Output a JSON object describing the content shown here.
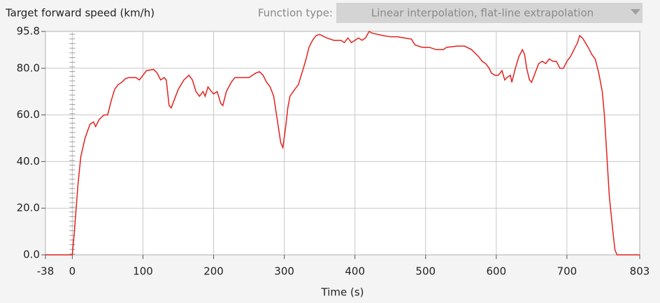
{
  "chart_data": {
    "type": "line",
    "title": "Target forward speed (km/h)",
    "controls": {
      "function_type_label": "Function type:",
      "function_type_value": "Linear interpolation, flat-line extrapolation"
    },
    "x_label": "Time (s)",
    "x": [
      -38,
      0,
      3,
      8,
      12,
      18,
      25,
      30,
      33,
      38,
      45,
      50,
      55,
      60,
      65,
      70,
      75,
      80,
      90,
      95,
      100,
      105,
      115,
      120,
      125,
      130,
      133,
      137,
      140,
      145,
      150,
      158,
      165,
      170,
      175,
      180,
      185,
      188,
      192,
      197,
      200,
      205,
      210,
      213,
      218,
      225,
      230,
      240,
      250,
      255,
      260,
      265,
      270,
      275,
      280,
      285,
      290,
      295,
      298,
      302,
      305,
      308,
      315,
      320,
      325,
      330,
      335,
      340,
      345,
      350,
      360,
      370,
      380,
      385,
      390,
      395,
      400,
      405,
      410,
      415,
      420,
      425,
      440,
      450,
      460,
      470,
      480,
      485,
      495,
      505,
      515,
      525,
      530,
      545,
      555,
      565,
      575,
      580,
      585,
      590,
      593,
      598,
      603,
      608,
      612,
      615,
      620,
      622,
      627,
      632,
      637,
      640,
      643,
      647,
      650,
      655,
      660,
      665,
      670,
      675,
      680,
      685,
      690,
      695,
      700,
      705,
      710,
      715,
      718,
      722,
      730,
      735,
      740,
      745,
      750,
      753,
      756,
      760,
      765,
      768,
      771,
      803
    ],
    "series": [
      {
        "name": "Target forward speed",
        "color": "#e0221e",
        "values": [
          0,
          0,
          10,
          30,
          42,
          50,
          56,
          57,
          55,
          58,
          60,
          60,
          66,
          71,
          73,
          74,
          75.5,
          76,
          76,
          75,
          77,
          79,
          79.5,
          78,
          75,
          76,
          75,
          64,
          63,
          67,
          71,
          75,
          77,
          75,
          70,
          68,
          70,
          68,
          72,
          70,
          69,
          70,
          65,
          64,
          70,
          74,
          76,
          76,
          76,
          77,
          78,
          78.5,
          77,
          74,
          72,
          68,
          58,
          48,
          46,
          55,
          63,
          68,
          71,
          73,
          78,
          83,
          89,
          92,
          94,
          94.5,
          93,
          92,
          92,
          91,
          93,
          91,
          92,
          93,
          92,
          93,
          95.8,
          95,
          94,
          93.5,
          93.5,
          93,
          92.5,
          90,
          89,
          89,
          88,
          88,
          89,
          89.5,
          89.5,
          88,
          85,
          83,
          82,
          80,
          78,
          77,
          77,
          79,
          75,
          76,
          77,
          74,
          80,
          85,
          88,
          86,
          80,
          75,
          74,
          78,
          82,
          83,
          82,
          84,
          83,
          83,
          80,
          80,
          83,
          85,
          88,
          91,
          94,
          93,
          89,
          86,
          84,
          78,
          70,
          60,
          45,
          25,
          10,
          2,
          0,
          0
        ]
      }
    ],
    "xlim": [
      -38,
      803
    ],
    "ylim": [
      0,
      95.8
    ],
    "xticks": [
      -38,
      0,
      100,
      200,
      300,
      400,
      500,
      600,
      700,
      803
    ],
    "yticks": [
      {
        "value": 0,
        "label": "0.0"
      },
      {
        "value": 20,
        "label": "20.0"
      },
      {
        "value": 40,
        "label": "40.0"
      },
      {
        "value": 60,
        "label": "60.0"
      },
      {
        "value": 80,
        "label": "80.0"
      },
      95.8
    ],
    "grid": true
  }
}
